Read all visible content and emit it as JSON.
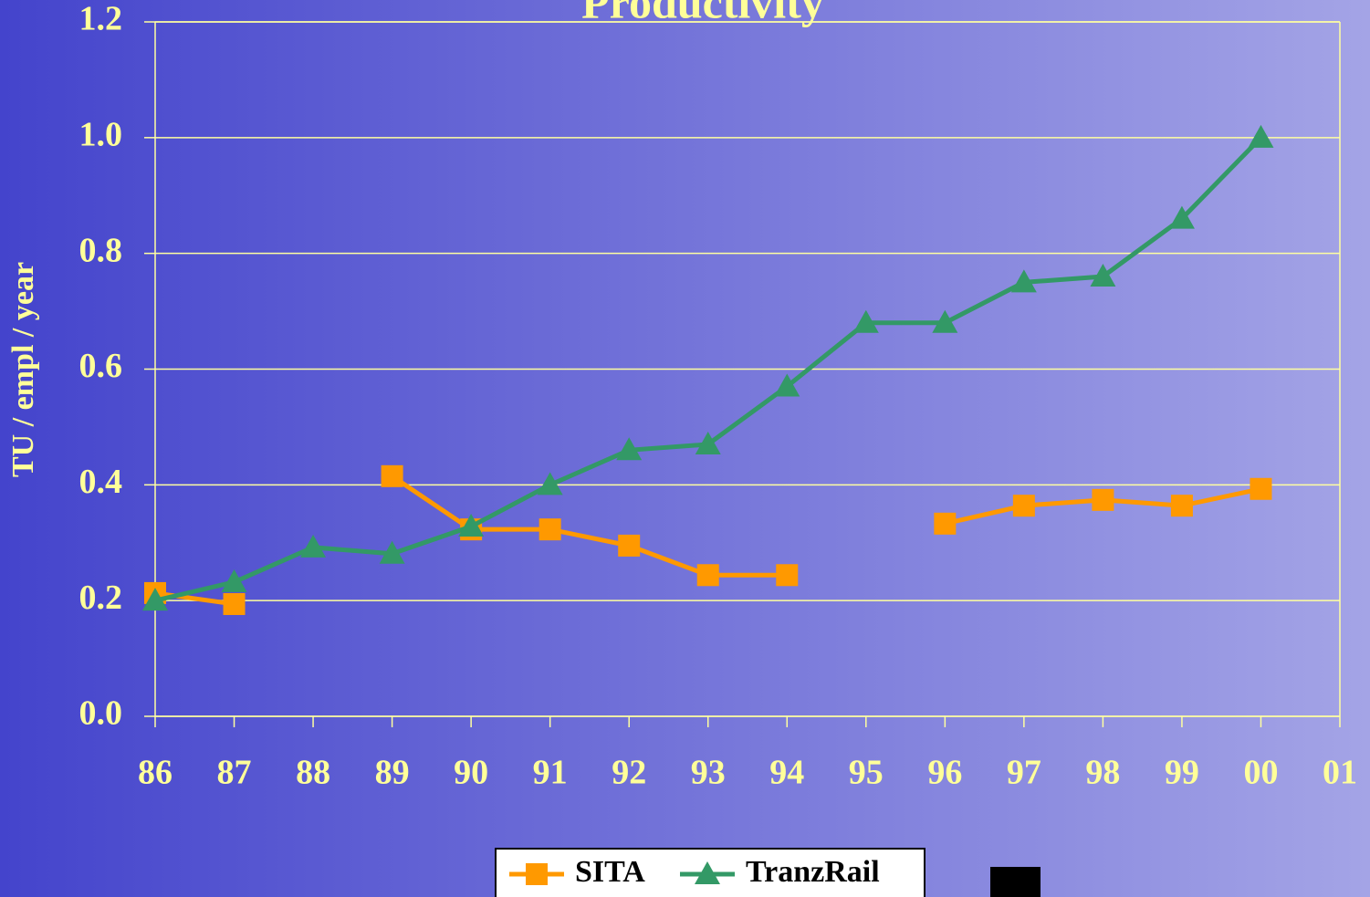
{
  "chart_data": {
    "type": "line",
    "title": "Productivity",
    "ylabel": "TU / empl / year",
    "categories": [
      "86",
      "87",
      "88",
      "89",
      "90",
      "91",
      "92",
      "93",
      "94",
      "95",
      "96",
      "97",
      "98",
      "99",
      "00",
      "01"
    ],
    "series": [
      {
        "name": "SITA",
        "color": "#ff9900",
        "marker": "square",
        "values": [
          0.213,
          0.194,
          null,
          0.415,
          0.323,
          0.323,
          0.295,
          0.244,
          0.244,
          null,
          0.333,
          0.364,
          0.374,
          0.364,
          0.393,
          null
        ]
      },
      {
        "name": "TranzRail",
        "color": "#339966",
        "marker": "triangle",
        "values": [
          0.2,
          0.232,
          0.292,
          0.281,
          0.328,
          0.4,
          0.46,
          0.47,
          0.57,
          0.68,
          0.68,
          0.75,
          0.76,
          0.86,
          1.0,
          null
        ]
      }
    ],
    "ylim": [
      0,
      1.2
    ],
    "yticks": [
      {
        "value": 0,
        "label": "0.0"
      },
      0.2,
      0.4,
      0.6,
      0.8,
      {
        "value": 1,
        "label": "1.0"
      },
      1.2
    ],
    "grid": true,
    "legend": "bottom"
  }
}
